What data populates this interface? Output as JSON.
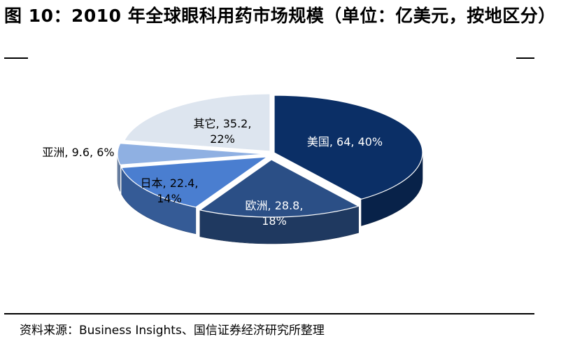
{
  "title": "图 10：2010 年全球眼科用药市场规模（单位：亿美元，按地区分）",
  "source": "资料来源：Business Insights、国信证券经济研究所整理",
  "chart_data": {
    "type": "pie",
    "style": "3d-exploded",
    "slices": [
      {
        "name": "美国",
        "value": 64,
        "percent": 40,
        "label_line1": "美国, 64, 40%",
        "label_line2": "",
        "color": "#0b2f66",
        "label_color": "#ffffff"
      },
      {
        "name": "欧洲",
        "value": 28.8,
        "percent": 18,
        "label_line1": "欧洲, 28.8,",
        "label_line2": "18%",
        "color": "#2b4f86",
        "label_color": "#ffffff"
      },
      {
        "name": "日本",
        "value": 22.4,
        "percent": 14,
        "label_line1": "日本, 22.4,",
        "label_line2": "14%",
        "color": "#4a7ed0",
        "label_color": "#000000"
      },
      {
        "name": "亚洲",
        "value": 9.6,
        "percent": 6,
        "label_line1": "亚洲, 9.6, 6%",
        "label_line2": "",
        "color": "#8fb0e2",
        "label_color": "#000000"
      },
      {
        "name": "其它",
        "value": 35.2,
        "percent": 22,
        "label_line1": "其它, 35.2,",
        "label_line2": "22%",
        "color": "#dde5ef",
        "label_color": "#000000"
      }
    ]
  }
}
